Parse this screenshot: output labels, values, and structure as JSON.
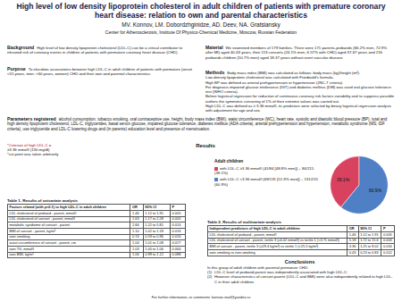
{
  "header": {
    "title": "High level of low density lipoprotein cholesterol in adult children of patients with premature coronary heart disease: relation to own and parental characteristics",
    "authors": "MV. Konnov, LM. Dobordzhginidze, AD. Deev, NA. Gratsiansky",
    "affiliation": "Center for Atherosclerosis, Institute Of Physico-Chemical Medicine, Moscow, Russian Federation"
  },
  "background": {
    "heading": "Background",
    "text": "High level of low density lipoprotein cholesterol (LDL-C) can be a critical contributor to elevated risk of coronary events in children of patients with premature coronary heart disease (CHD)."
  },
  "purpose": {
    "heading": "Purpose",
    "text": "To elucidate associations between high LDL-C in adult children of patients with premature (onset <55 years, men; <60 years, women) CHD and their own and parental characteristics."
  },
  "material": {
    "heading": "Material",
    "text": "We examined members of 179 families. There were 171 parents-probands (66.2% men, 72.9% after MI) aged 40-63 years, their 113 consorts (24.1% men, 6.57% with CHD) aged 37-67 years and 216 probands children (50.7% men) aged 18-37 years without overt vascular disease."
  },
  "methods": {
    "heading": "Methods",
    "paragraphs": [
      "Body mass index (BMI) was calculated as follows: body mass (kg)/height (m²).",
      "Low-density lipoprotein cholesterol was calculated with Friedwald's formula.",
      "High BP was defined as arterial prehypertension or hypertension (JNC-7 criteria).",
      "For diagnosis impaired glucose intolerance (IGT) and diabetes mellitus (DM) was used oral glucose tolerance test (WHO criteria).",
      "Before logistical regression for reduction of continuous coronary risk factors variability and to suppress possible outliers the symmetric censoring of 1% of their extreme values was carried out.",
      "High LDL-C was defined as ≥ 3.36 mmol/l, its predictors were selected by binary logistical regression analysis with adjustment for age and sex."
    ]
  },
  "parameters": {
    "heading": "Parameters registered",
    "text": "alcohol consumption, tobacco smoking, oral contraceptive use, height, body mass index (BMI), waist circumference (WC), heart rate, systolic and diastolic blood pressure (BP), total and high density lipoprotein cholesterol, LDL-C, triglycerides, basal serum glucose, impaired glucose tolerance, diabetes mellitus (ADA criteria), arterial prehypertension and hypertension, metabolic syndrome (MS; IDF criteria), use triglyceride and LDL-C lowering drugs and (in parents) education level and presence of menstruation."
  },
  "criterion_note": [
    "*Criterion of high LDL-C =",
    "≥3.36 mmol/l (130 mg/dl)",
    "*cut point was taken arbitrarily"
  ],
  "results_heading": "Results",
  "chart_data": {
    "type": "pie",
    "title": "Adult children",
    "categories": [
      "with LDL-C ≥3.36 mmol/l (41/84 [48.8% men]) – 84/215 (39.1%)",
      "with LDL-C <3.36 mmol/l (68/131 [51.9% men]) – 131/215 (60.9%)"
    ],
    "values": [
      39.1,
      60.9
    ],
    "value_labels": [
      "39.1%",
      "60.9%"
    ],
    "colors": [
      "#d9425e",
      "#4f7fc4"
    ],
    "data_labels": true
  },
  "table1": {
    "caption": "Table 1. Results of univariate analysis",
    "columns": [
      "Factors related (with p<0.1) to high LDL-C in adult children",
      "OR",
      "95% CI",
      "P"
    ],
    "rows": [
      [
        "LDL cholesterol of proband - parent, mmol/l",
        "1.46",
        "1.12 to 1.91",
        "0.005"
      ],
      [
        "LDL cholesterol of consort - parent, mmol/l",
        "1.63",
        "1.17 to 2.28",
        "0.005"
      ],
      [
        "metabolic syndrome of consort - parent",
        "2.66",
        "1.22 to 5.81",
        "0.014"
      ],
      [
        "BMI of consort - parent, kg/m²",
        "1.10",
        "1.02 to 1.18",
        "0.016"
      ],
      [
        "own smoking",
        "0.74",
        "0.59 to 0.96",
        "0.016"
      ],
      [
        "waist circumference of consort - parent, cm",
        "1.04",
        "1.01 to 1.08",
        "0.017"
      ],
      [
        "own TG, mmol/l",
        "1.03",
        "1.00 to 1.06",
        "0.064"
      ],
      [
        "own BMI, kg/m²",
        "1.06",
        "0.99 to 1.12",
        "0.088"
      ]
    ]
  },
  "table2": {
    "caption": "Table 2. Results of multivariate analysis",
    "columns": [
      "Independent predictors of high LDL-C in adult children",
      "OR",
      "95% CI",
      "P"
    ],
    "rows": [
      [
        "LDL cholesterol of proband - parent, mmol/l",
        "1.46",
        "1.12 to 1.91",
        "0.005"
      ],
      [
        "LDL cholesterol of consort - parent, tertile 3 (≥4.42 mmol/l) vs tertile 1 (<3.71 mmol/l)",
        "5.18",
        "1.72 to 15.6",
        "0.003"
      ],
      [
        "BMI of consort - parent, tertile 3 (≥29.4 kg/m²) vs tertile 1 (<25.5 kg/m²)",
        "3.36",
        "1.25 to 9.02",
        "0.016"
      ],
      [
        "own smoking vs non-smoking",
        "0.43",
        "0.23 to 0.83",
        "0.012"
      ]
    ]
  },
  "conclusions": {
    "heading": "Conclusions",
    "intro": "In this group of adult children with parental premature CHD:",
    "items": [
      {
        "number": "(1)",
        "text": "LDL-C level of proband-parent was independently associated with high LDL-C;"
      },
      {
        "number": "(2)",
        "text": "However characteristics of consort-parent (LDL-C and BMI) were also independently related to high LDL-C in their adult children."
      }
    ]
  },
  "footer": "For further information, or comments: konnov-mail@yandex.ru"
}
